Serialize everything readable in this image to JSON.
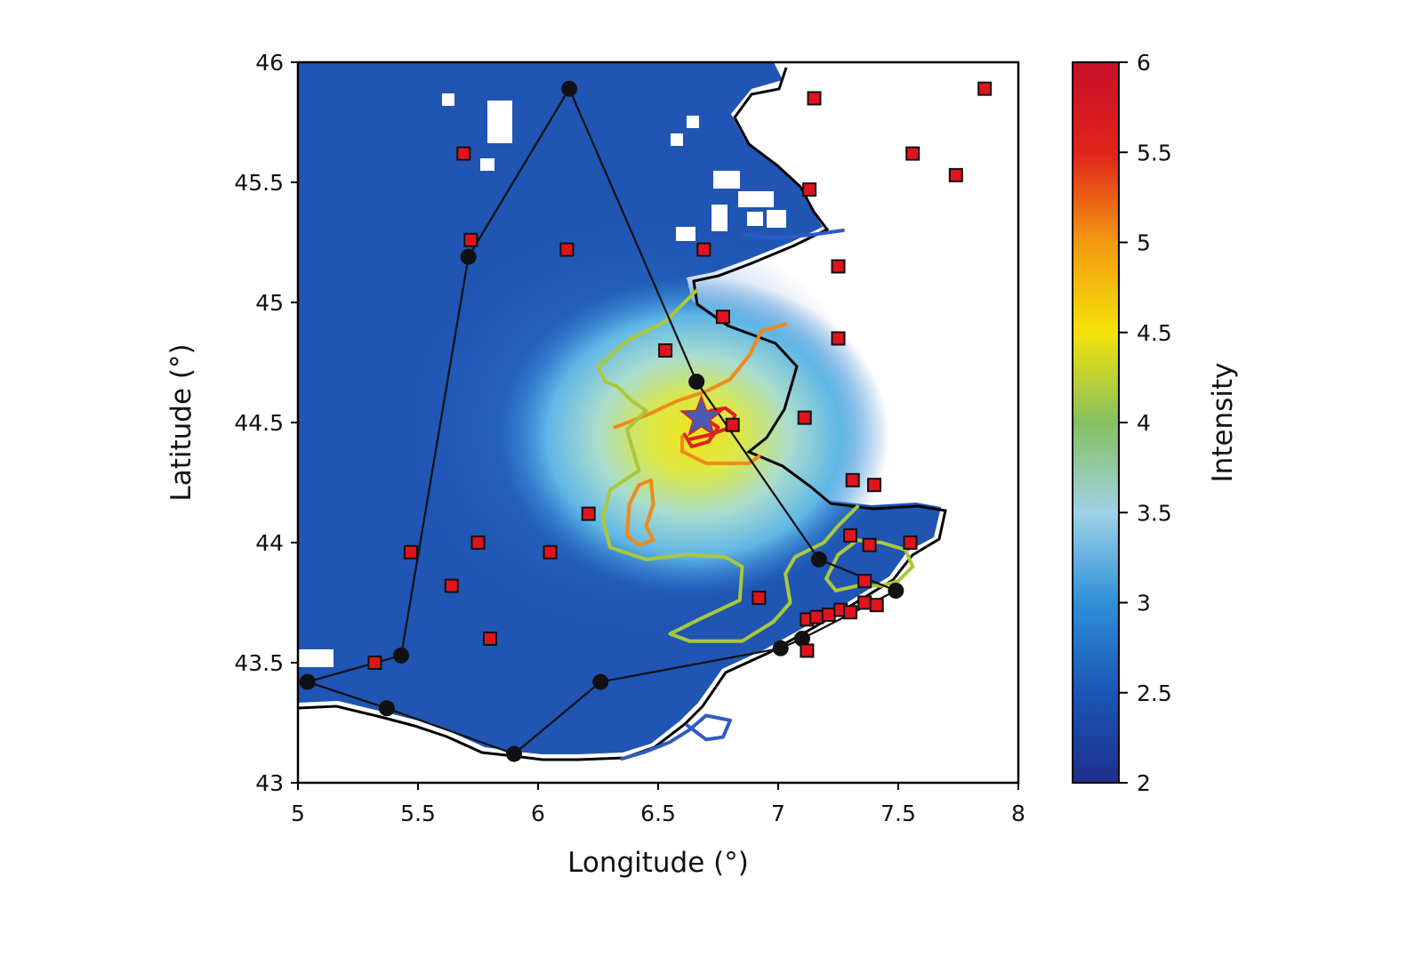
{
  "chart_data": {
    "type": "heatmap",
    "title": "",
    "xlabel": "Longitude (°)",
    "ylabel": "Latitude (°)",
    "xlim": [
      5,
      8
    ],
    "ylim": [
      43,
      46
    ],
    "xticks": [
      "5",
      "5.5",
      "6",
      "6.5",
      "7",
      "7.5",
      "8"
    ],
    "yticks": [
      "43",
      "43.5",
      "44",
      "44.5",
      "45",
      "45.5",
      "46"
    ],
    "grid": false,
    "colorbar": {
      "label": "Intensity",
      "range": [
        2,
        6
      ],
      "ticks": [
        "2",
        "2.5",
        "3",
        "3.5",
        "4",
        "4.5",
        "5",
        "5.5",
        "6"
      ],
      "colors": [
        "#1e2f8c",
        "#1a56b6",
        "#2e8fd8",
        "#9fd2e6",
        "#86c060",
        "#f5e20a",
        "#f39a12",
        "#e0231a",
        "#c8102a"
      ]
    },
    "epicenter": {
      "lon": 6.68,
      "lat": 44.52,
      "color": "#4b5ab0"
    },
    "max_intensity_area": {
      "lon": 6.7,
      "lat": 44.5,
      "value": 4.6
    },
    "network_polygon": [
      {
        "lon": 6.13,
        "lat": 45.89
      },
      {
        "lon": 6.66,
        "lat": 44.67
      },
      {
        "lon": 7.17,
        "lat": 43.93
      },
      {
        "lon": 7.49,
        "lat": 43.8
      },
      {
        "lon": 7.1,
        "lat": 43.6
      },
      {
        "lon": 7.01,
        "lat": 43.56
      },
      {
        "lon": 6.26,
        "lat": 43.42
      },
      {
        "lon": 5.9,
        "lat": 43.12
      },
      {
        "lon": 5.37,
        "lat": 43.31
      },
      {
        "lon": 5.04,
        "lat": 43.42
      },
      {
        "lon": 5.43,
        "lat": 43.53
      },
      {
        "lon": 5.71,
        "lat": 45.19
      },
      {
        "lon": 6.13,
        "lat": 45.89
      }
    ],
    "stations": [
      {
        "lon": 5.69,
        "lat": 45.62
      },
      {
        "lon": 5.72,
        "lat": 45.26
      },
      {
        "lon": 6.12,
        "lat": 45.22
      },
      {
        "lon": 6.69,
        "lat": 45.22
      },
      {
        "lon": 7.15,
        "lat": 45.85
      },
      {
        "lon": 7.13,
        "lat": 45.47
      },
      {
        "lon": 7.25,
        "lat": 45.15
      },
      {
        "lon": 7.25,
        "lat": 44.85
      },
      {
        "lon": 7.56,
        "lat": 45.62
      },
      {
        "lon": 7.74,
        "lat": 45.53
      },
      {
        "lon": 7.86,
        "lat": 45.89
      },
      {
        "lon": 6.77,
        "lat": 44.94
      },
      {
        "lon": 6.53,
        "lat": 44.8
      },
      {
        "lon": 7.11,
        "lat": 44.52
      },
      {
        "lon": 6.81,
        "lat": 44.49
      },
      {
        "lon": 7.31,
        "lat": 44.26
      },
      {
        "lon": 7.4,
        "lat": 44.24
      },
      {
        "lon": 6.21,
        "lat": 44.12
      },
      {
        "lon": 7.3,
        "lat": 44.03
      },
      {
        "lon": 7.38,
        "lat": 43.99
      },
      {
        "lon": 7.55,
        "lat": 44.0
      },
      {
        "lon": 5.47,
        "lat": 43.96
      },
      {
        "lon": 5.75,
        "lat": 44.0
      },
      {
        "lon": 6.05,
        "lat": 43.96
      },
      {
        "lon": 5.64,
        "lat": 43.82
      },
      {
        "lon": 6.92,
        "lat": 43.77
      },
      {
        "lon": 7.36,
        "lat": 43.84
      },
      {
        "lon": 7.36,
        "lat": 43.75
      },
      {
        "lon": 7.41,
        "lat": 43.74
      },
      {
        "lon": 7.12,
        "lat": 43.68
      },
      {
        "lon": 7.16,
        "lat": 43.69
      },
      {
        "lon": 7.21,
        "lat": 43.7
      },
      {
        "lon": 7.26,
        "lat": 43.72
      },
      {
        "lon": 7.3,
        "lat": 43.71
      },
      {
        "lon": 5.8,
        "lat": 43.6
      },
      {
        "lon": 7.12,
        "lat": 43.55
      },
      {
        "lon": 5.32,
        "lat": 43.5
      }
    ],
    "contours": [
      {
        "level": "4.5",
        "color": "#e0231a",
        "points": [
          [
            6.63,
            44.43
          ],
          [
            6.72,
            44.45
          ],
          [
            6.8,
            44.48
          ],
          [
            6.82,
            44.53
          ],
          [
            6.78,
            44.56
          ],
          [
            6.72,
            44.55
          ],
          [
            6.69,
            44.52
          ],
          [
            6.75,
            44.48
          ],
          [
            6.71,
            44.42
          ],
          [
            6.64,
            44.4
          ],
          [
            6.61,
            44.45
          ]
        ]
      },
      {
        "level": "4 (north arm)",
        "color": "#f08a1a",
        "points": [
          [
            6.32,
            44.48
          ],
          [
            6.45,
            44.53
          ],
          [
            6.58,
            44.59
          ],
          [
            6.7,
            44.63
          ],
          [
            6.8,
            44.68
          ],
          [
            6.88,
            44.78
          ],
          [
            6.93,
            44.88
          ],
          [
            7.03,
            44.91
          ]
        ]
      },
      {
        "level": "4 (east lobe)",
        "color": "#f08a1a",
        "points": [
          [
            6.6,
            44.44
          ],
          [
            6.6,
            44.38
          ],
          [
            6.7,
            44.33
          ],
          [
            6.88,
            44.33
          ],
          [
            6.92,
            44.36
          ]
        ]
      },
      {
        "level": "4 (south lobe)",
        "color": "#f08a1a",
        "points": [
          [
            6.42,
            44.24
          ],
          [
            6.47,
            44.26
          ],
          [
            6.48,
            44.16
          ],
          [
            6.45,
            44.07
          ],
          [
            6.48,
            44.01
          ],
          [
            6.42,
            43.99
          ],
          [
            6.37,
            44.03
          ],
          [
            6.38,
            44.16
          ],
          [
            6.42,
            44.24
          ]
        ]
      },
      {
        "level": "3.5",
        "color": "#a9c93a",
        "points": [
          [
            6.66,
            45.05
          ],
          [
            6.53,
            44.92
          ],
          [
            6.37,
            44.84
          ],
          [
            6.25,
            44.73
          ],
          [
            6.28,
            44.67
          ],
          [
            6.33,
            44.65
          ],
          [
            6.39,
            44.59
          ],
          [
            6.45,
            44.55
          ],
          [
            6.37,
            44.47
          ],
          [
            6.42,
            44.3
          ],
          [
            6.3,
            44.22
          ],
          [
            6.27,
            44.1
          ],
          [
            6.3,
            43.98
          ],
          [
            6.45,
            43.93
          ],
          [
            6.62,
            43.95
          ],
          [
            6.78,
            43.94
          ],
          [
            6.85,
            43.9
          ],
          [
            6.84,
            43.76
          ],
          [
            6.67,
            43.68
          ],
          [
            6.55,
            43.62
          ],
          [
            6.63,
            43.59
          ],
          [
            6.85,
            43.59
          ],
          [
            6.98,
            43.67
          ],
          [
            7.05,
            43.75
          ],
          [
            7.03,
            43.87
          ],
          [
            7.07,
            43.94
          ],
          [
            7.19,
            44.0
          ],
          [
            7.25,
            44.07
          ],
          [
            7.33,
            44.15
          ]
        ]
      },
      {
        "level": "3.5 (coast loop)",
        "color": "#a9c93a",
        "points": [
          [
            7.2,
            43.85
          ],
          [
            7.25,
            43.95
          ],
          [
            7.33,
            44.01
          ],
          [
            7.43,
            44.0
          ],
          [
            7.53,
            43.97
          ],
          [
            7.56,
            43.9
          ],
          [
            7.5,
            43.84
          ],
          [
            7.43,
            43.82
          ],
          [
            7.33,
            43.82
          ],
          [
            7.24,
            43.8
          ],
          [
            7.2,
            43.85
          ]
        ]
      },
      {
        "level": "3",
        "color": "#2f5bc4",
        "points": [
          [
            6.86,
            45.28
          ],
          [
            6.98,
            45.27
          ],
          [
            7.13,
            45.28
          ],
          [
            7.27,
            45.3
          ]
        ]
      },
      {
        "level": "3 (south loop)",
        "color": "#2f5bc4",
        "points": [
          [
            6.35,
            43.1
          ],
          [
            6.45,
            43.13
          ],
          [
            6.55,
            43.17
          ],
          [
            6.63,
            43.22
          ],
          [
            6.7,
            43.28
          ],
          [
            6.8,
            43.26
          ],
          [
            6.77,
            43.19
          ],
          [
            6.7,
            43.18
          ],
          [
            6.62,
            43.24
          ]
        ]
      }
    ]
  }
}
